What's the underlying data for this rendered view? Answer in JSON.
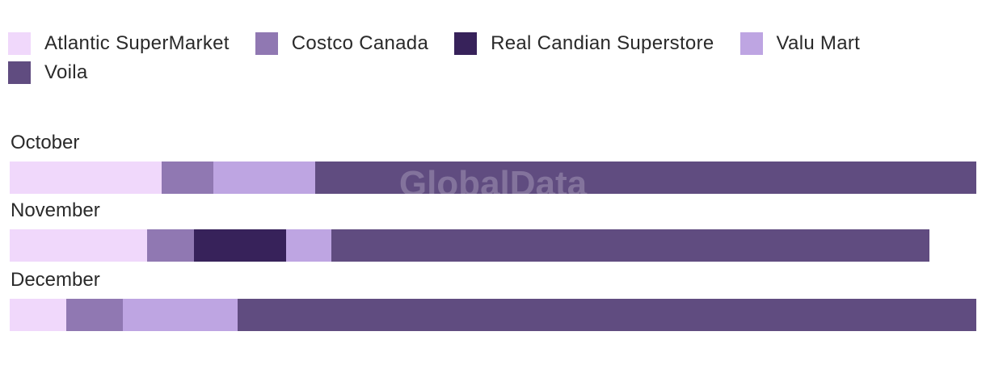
{
  "watermark": "GlobalData",
  "chart_data": {
    "type": "bar",
    "orientation": "horizontal",
    "stacked": true,
    "categories": [
      "October",
      "November",
      "December"
    ],
    "series": [
      {
        "name": "Atlantic SuperMarket",
        "color": "#f0d8fb",
        "values": [
          188,
          170,
          70
        ]
      },
      {
        "name": "Costco Canada",
        "color": "#9078b2",
        "values": [
          64,
          58,
          70
        ]
      },
      {
        "name": "Real Candian Superstore",
        "color": "#37225a",
        "values": [
          0,
          114,
          0
        ]
      },
      {
        "name": "Valu Mart",
        "color": "#bea5e2",
        "values": [
          126,
          56,
          142
        ]
      },
      {
        "name": "Voila",
        "color": "#604c80",
        "values": [
          818,
          740,
          914
        ]
      }
    ],
    "xlim": [
      0,
      1196
    ],
    "title": "",
    "xlabel": "",
    "ylabel": "",
    "grid": false,
    "legend_position": "top"
  }
}
